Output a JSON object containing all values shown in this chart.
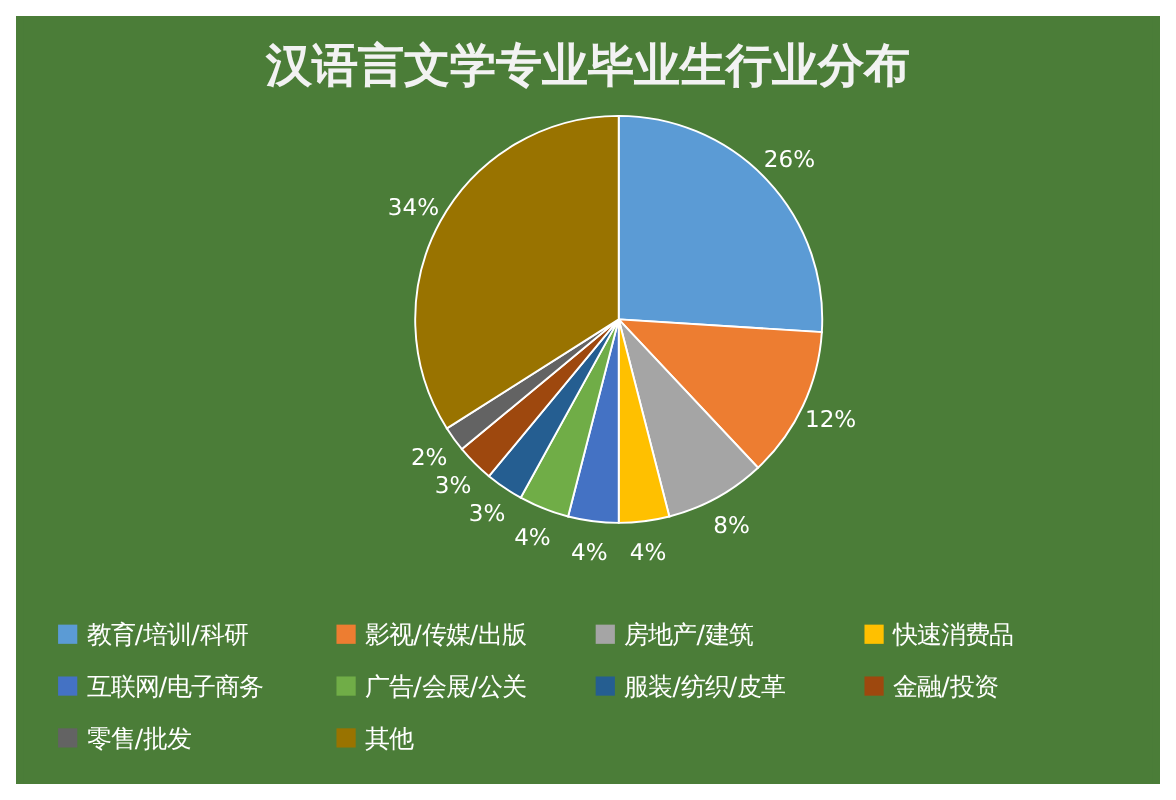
{
  "chart_data": {
    "type": "pie",
    "title": "汉语言文学专业毕业生行业分布",
    "categories": [
      "教育/培训/科研",
      "影视/传媒/出版",
      "房地产/建筑",
      "快速消费品",
      "互联网/电子商务",
      "广告/会展/公关",
      "服装/纺织/皮革",
      "金融/投资",
      "零售/批发",
      "其他"
    ],
    "values": [
      26,
      12,
      8,
      4,
      4,
      4,
      3,
      3,
      2,
      34
    ],
    "value_labels": [
      "26%",
      "12%",
      "8%",
      "4%",
      "4%",
      "4%",
      "3%",
      "3%",
      "2%",
      "34%"
    ],
    "colors": [
      "#5b9bd5",
      "#ed7d31",
      "#a5a5a5",
      "#ffc000",
      "#4472c4",
      "#70ad47",
      "#255e91",
      "#9e480e",
      "#636363",
      "#997300"
    ],
    "legend": "bottom"
  }
}
